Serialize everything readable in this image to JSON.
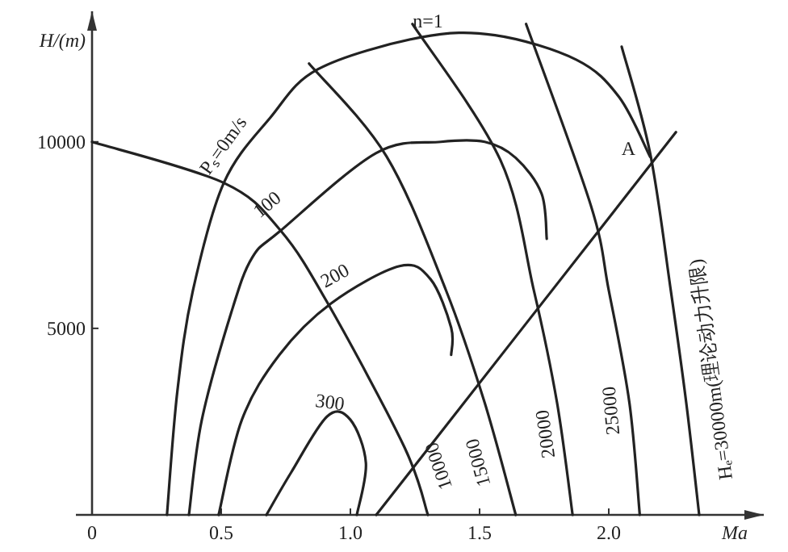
{
  "chart_data": {
    "type": "line",
    "xlabel": "Ma",
    "ylabel": "H/(m)",
    "xlim": [
      0,
      2.6
    ],
    "ylim": [
      0,
      13500
    ],
    "xticks": [
      0,
      0.5,
      {
        "value": 1.0,
        "label": "1.0"
      },
      1.5,
      {
        "value": 2.0,
        "label": "2.0"
      }
    ],
    "yticks": [
      5000,
      10000
    ],
    "series": [
      {
        "name": "Pₛ=0m/s",
        "color": "#222222",
        "x": [
          0.29,
          0.33,
          0.39,
          0.51,
          0.69,
          0.875,
          1.27,
          1.56,
          1.875,
          2.04,
          2.16
        ],
        "values": [
          0,
          3300,
          6000,
          8900,
          10650,
          11950,
          12800,
          12860,
          12200,
          11200,
          9600
        ]
      },
      {
        "name": "100",
        "color": "#222222",
        "x": [
          0.375,
          0.425,
          0.54,
          0.62,
          0.73,
          1.1,
          1.35,
          1.52,
          1.64,
          1.74,
          1.76
        ],
        "values": [
          0,
          2550,
          5450,
          6900,
          7620,
          9700,
          10000,
          10000,
          9570,
          8610,
          7400
        ]
      },
      {
        "name": "200",
        "color": "#222222",
        "x": [
          0.49,
          0.58,
          0.725,
          0.925,
          1.19,
          1.31,
          1.39,
          1.39
        ],
        "values": [
          0,
          2550,
          4290,
          5670,
          6670,
          6320,
          5020,
          4290
        ]
      },
      {
        "name": "300",
        "color": "#222222",
        "x": [
          0.675,
          0.77,
          0.91,
          1.0,
          1.06,
          1.025
        ],
        "values": [
          0,
          1130,
          2640,
          2550,
          1390,
          0
        ]
      },
      {
        "name": "10000",
        "color": "#222222",
        "x": [
          0,
          0.51,
          0.73,
          0.92,
          1.21,
          1.3
        ],
        "values": [
          10000,
          8900,
          7620,
          5580,
          1800,
          0
        ]
      },
      {
        "name": "15000",
        "color": "#222222",
        "x": [
          0.84,
          1.14,
          1.37,
          1.52,
          1.64
        ],
        "values": [
          12100,
          9610,
          6020,
          3000,
          0
        ]
      },
      {
        "name": "20000",
        "color": "#222222",
        "x": [
          1.24,
          1.58,
          1.71,
          1.8,
          1.86
        ],
        "values": [
          13160,
          9520,
          6020,
          3000,
          0
        ]
      },
      {
        "name": "25000",
        "color": "#222222",
        "x": [
          1.68,
          1.93,
          2.0,
          2.08,
          2.12
        ],
        "values": [
          13160,
          8310,
          6020,
          3000,
          0
        ]
      },
      {
        "name": "Hₑ=30000m(理论动力升限)",
        "color": "#222222",
        "x": [
          2.05,
          2.16,
          2.24,
          2.3,
          2.35
        ],
        "values": [
          12550,
          9700,
          6020,
          3000,
          0
        ]
      },
      {
        "color": "#222222",
        "x": [
          1.1,
          2.26
        ],
        "values": [
          0,
          10260
        ]
      }
    ],
    "annotations": [
      {
        "text": "n=1",
        "x": 1.3,
        "y": 12800
      },
      {
        "text": "A",
        "x": 2.16,
        "y": 9600
      }
    ]
  }
}
